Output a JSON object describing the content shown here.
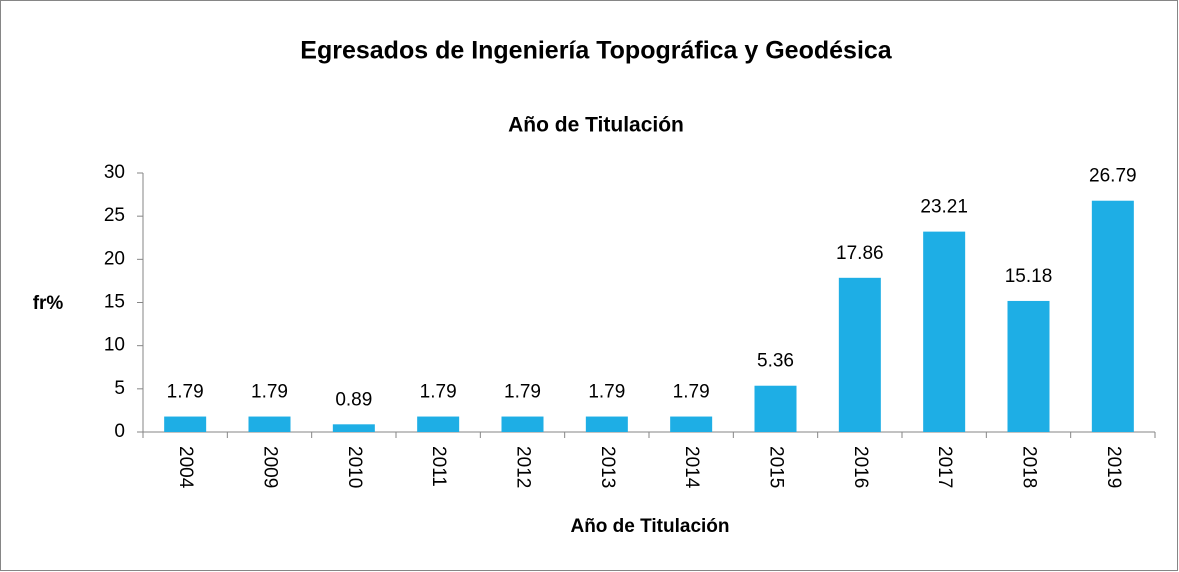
{
  "chart_data": {
    "type": "bar",
    "title": "Egresados de Ingeniería Topográfica y Geodésica",
    "subtitle": "Año de Titulación",
    "x_label": "Año de Titulación",
    "y_label": "fr%",
    "categories": [
      "2004",
      "2009",
      "2010",
      "2011",
      "2012",
      "2013",
      "2014",
      "2015",
      "2016",
      "2017",
      "2018",
      "2019"
    ],
    "values": [
      1.79,
      1.79,
      0.89,
      1.79,
      1.79,
      1.79,
      1.79,
      5.36,
      17.86,
      23.21,
      15.18,
      26.79
    ],
    "color": "#1eaee5",
    "ylim": [
      0,
      30
    ],
    "yticks": [
      0,
      5,
      10,
      15,
      20,
      25,
      30
    ],
    "grid": false
  }
}
